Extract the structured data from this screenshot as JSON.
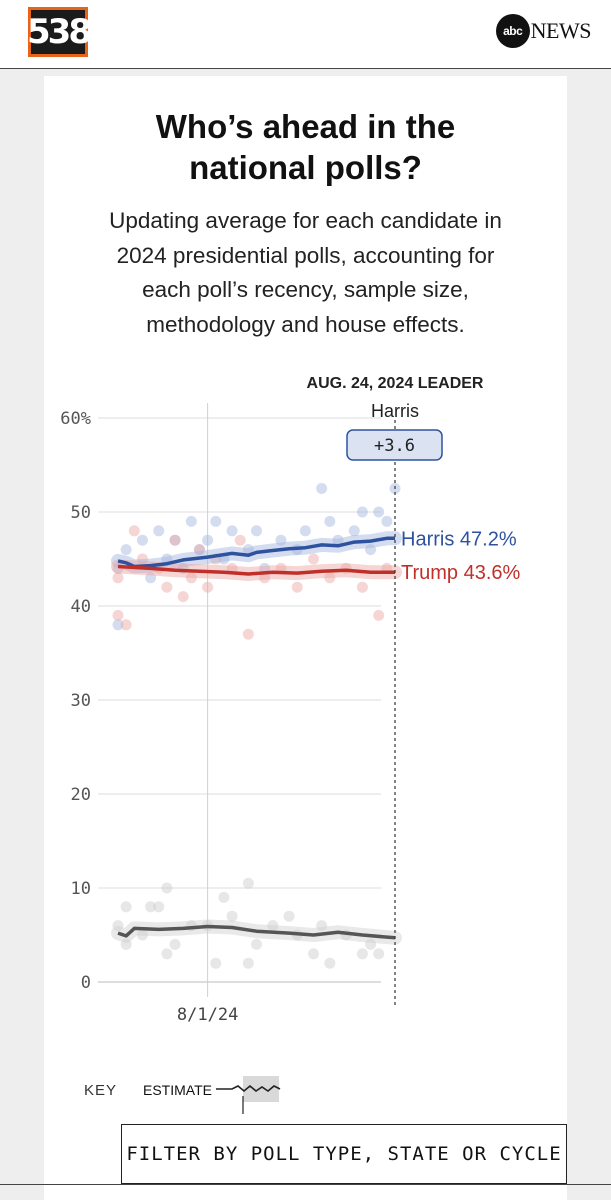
{
  "header": {
    "logo_text": "538",
    "abc_text": "abc",
    "news_text": "NEWS"
  },
  "title_line1": "Who’s ahead in the",
  "title_line2": "national polls?",
  "subtitle_lines": [
    "Updating average for each candidate in",
    "2024 presidential polls, accounting for",
    "each poll’s recency, sample size,",
    "methodology and house effects."
  ],
  "leader": {
    "heading": "AUG. 24, 2024 LEADER",
    "name": "Harris",
    "margin": "+3.6"
  },
  "key": {
    "label": "KEY",
    "estimate_label": "ESTIMATE"
  },
  "filter_label": "FILTER BY POLL TYPE, STATE OR CYCLE",
  "colors": {
    "harris": "#2f52a0",
    "trump": "#c0302b",
    "other": "#555555",
    "logo_accent": "#e8631a"
  },
  "chart_data": {
    "type": "line",
    "x_domain": [
      "2024-07-21",
      "2024-08-24"
    ],
    "y_domain": [
      0,
      60
    ],
    "y_ticks": [
      0,
      10,
      20,
      30,
      40,
      50,
      60
    ],
    "y_tick_labels": [
      "0",
      "10",
      "20",
      "30",
      "40",
      "50",
      "60%"
    ],
    "x_ticks": [
      {
        "date": "2024-08-01",
        "label": "8/1/24"
      }
    ],
    "end_labels": [
      {
        "series": "Harris",
        "text": "Harris 47.2%"
      },
      {
        "series": "Trump",
        "text": "Trump 43.6%"
      }
    ],
    "grid": true,
    "series": [
      {
        "name": "Harris",
        "color": "#2f52a0",
        "x": [
          "2024-07-21",
          "2024-07-22",
          "2024-07-23",
          "2024-07-25",
          "2024-07-27",
          "2024-07-29",
          "2024-08-01",
          "2024-08-04",
          "2024-08-06",
          "2024-08-07",
          "2024-08-09",
          "2024-08-11",
          "2024-08-13",
          "2024-08-15",
          "2024-08-17",
          "2024-08-19",
          "2024-08-21",
          "2024-08-23",
          "2024-08-24"
        ],
        "values": [
          44.8,
          44.6,
          44.2,
          44.3,
          44.5,
          44.9,
          45.2,
          45.6,
          45.4,
          45.7,
          45.9,
          46.1,
          46.2,
          46.5,
          46.4,
          46.8,
          46.9,
          47.2,
          47.2
        ]
      },
      {
        "name": "Trump",
        "color": "#c0302b",
        "x": [
          "2024-07-21",
          "2024-07-23",
          "2024-07-25",
          "2024-07-28",
          "2024-07-31",
          "2024-08-03",
          "2024-08-06",
          "2024-08-09",
          "2024-08-12",
          "2024-08-15",
          "2024-08-18",
          "2024-08-21",
          "2024-08-24"
        ],
        "values": [
          44.2,
          44.1,
          44.0,
          43.8,
          43.7,
          43.6,
          43.4,
          43.6,
          43.5,
          43.7,
          43.8,
          43.6,
          43.6
        ]
      },
      {
        "name": "Other",
        "color": "#555555",
        "x": [
          "2024-07-21",
          "2024-07-22",
          "2024-07-23",
          "2024-07-26",
          "2024-07-29",
          "2024-08-01",
          "2024-08-04",
          "2024-08-07",
          "2024-08-11",
          "2024-08-14",
          "2024-08-17",
          "2024-08-20",
          "2024-08-24"
        ],
        "values": [
          5.2,
          4.9,
          5.7,
          5.6,
          5.7,
          5.9,
          5.8,
          5.4,
          5.2,
          5.0,
          5.3,
          5.0,
          4.7
        ]
      }
    ],
    "polls": [
      {
        "s": "Harris",
        "x": "2024-07-21",
        "y": 44
      },
      {
        "s": "Harris",
        "x": "2024-07-21",
        "y": 38
      },
      {
        "s": "Harris",
        "x": "2024-07-22",
        "y": 46
      },
      {
        "s": "Harris",
        "x": "2024-07-24",
        "y": 47
      },
      {
        "s": "Harris",
        "x": "2024-07-25",
        "y": 43
      },
      {
        "s": "Harris",
        "x": "2024-07-26",
        "y": 48
      },
      {
        "s": "Harris",
        "x": "2024-07-27",
        "y": 45
      },
      {
        "s": "Harris",
        "x": "2024-07-28",
        "y": 47
      },
      {
        "s": "Harris",
        "x": "2024-07-29",
        "y": 44
      },
      {
        "s": "Harris",
        "x": "2024-07-30",
        "y": 49
      },
      {
        "s": "Harris",
        "x": "2024-07-31",
        "y": 46
      },
      {
        "s": "Harris",
        "x": "2024-08-01",
        "y": 47
      },
      {
        "s": "Harris",
        "x": "2024-08-02",
        "y": 49
      },
      {
        "s": "Harris",
        "x": "2024-08-03",
        "y": 45
      },
      {
        "s": "Harris",
        "x": "2024-08-04",
        "y": 48
      },
      {
        "s": "Harris",
        "x": "2024-08-06",
        "y": 46
      },
      {
        "s": "Harris",
        "x": "2024-08-07",
        "y": 48
      },
      {
        "s": "Harris",
        "x": "2024-08-08",
        "y": 44
      },
      {
        "s": "Harris",
        "x": "2024-08-10",
        "y": 47
      },
      {
        "s": "Harris",
        "x": "2024-08-12",
        "y": 46
      },
      {
        "s": "Harris",
        "x": "2024-08-13",
        "y": 48
      },
      {
        "s": "Harris",
        "x": "2024-08-15",
        "y": 52.5
      },
      {
        "s": "Harris",
        "x": "2024-08-16",
        "y": 49
      },
      {
        "s": "Harris",
        "x": "2024-08-17",
        "y": 47
      },
      {
        "s": "Harris",
        "x": "2024-08-19",
        "y": 48
      },
      {
        "s": "Harris",
        "x": "2024-08-20",
        "y": 50
      },
      {
        "s": "Harris",
        "x": "2024-08-21",
        "y": 46
      },
      {
        "s": "Harris",
        "x": "2024-08-22",
        "y": 50
      },
      {
        "s": "Harris",
        "x": "2024-08-23",
        "y": 49
      },
      {
        "s": "Harris",
        "x": "2024-08-24",
        "y": 52.5
      },
      {
        "s": "Trump",
        "x": "2024-07-21",
        "y": 43
      },
      {
        "s": "Trump",
        "x": "2024-07-21",
        "y": 39
      },
      {
        "s": "Trump",
        "x": "2024-07-22",
        "y": 38
      },
      {
        "s": "Trump",
        "x": "2024-07-23",
        "y": 48
      },
      {
        "s": "Trump",
        "x": "2024-07-24",
        "y": 45
      },
      {
        "s": "Trump",
        "x": "2024-07-26",
        "y": 44
      },
      {
        "s": "Trump",
        "x": "2024-07-27",
        "y": 42
      },
      {
        "s": "Trump",
        "x": "2024-07-28",
        "y": 47
      },
      {
        "s": "Trump",
        "x": "2024-07-29",
        "y": 41
      },
      {
        "s": "Trump",
        "x": "2024-07-30",
        "y": 43
      },
      {
        "s": "Trump",
        "x": "2024-07-31",
        "y": 46
      },
      {
        "s": "Trump",
        "x": "2024-08-01",
        "y": 42
      },
      {
        "s": "Trump",
        "x": "2024-08-02",
        "y": 45
      },
      {
        "s": "Trump",
        "x": "2024-08-04",
        "y": 44
      },
      {
        "s": "Trump",
        "x": "2024-08-05",
        "y": 47
      },
      {
        "s": "Trump",
        "x": "2024-08-06",
        "y": 37
      },
      {
        "s": "Trump",
        "x": "2024-08-08",
        "y": 43
      },
      {
        "s": "Trump",
        "x": "2024-08-10",
        "y": 44
      },
      {
        "s": "Trump",
        "x": "2024-08-12",
        "y": 42
      },
      {
        "s": "Trump",
        "x": "2024-08-14",
        "y": 45
      },
      {
        "s": "Trump",
        "x": "2024-08-16",
        "y": 43
      },
      {
        "s": "Trump",
        "x": "2024-08-18",
        "y": 44
      },
      {
        "s": "Trump",
        "x": "2024-08-20",
        "y": 42
      },
      {
        "s": "Trump",
        "x": "2024-08-22",
        "y": 39
      },
      {
        "s": "Trump",
        "x": "2024-08-23",
        "y": 44
      },
      {
        "s": "Other",
        "x": "2024-07-21",
        "y": 6
      },
      {
        "s": "Other",
        "x": "2024-07-22",
        "y": 4
      },
      {
        "s": "Other",
        "x": "2024-07-22",
        "y": 8
      },
      {
        "s": "Other",
        "x": "2024-07-24",
        "y": 5
      },
      {
        "s": "Other",
        "x": "2024-07-25",
        "y": 8
      },
      {
        "s": "Other",
        "x": "2024-07-26",
        "y": 8
      },
      {
        "s": "Other",
        "x": "2024-07-27",
        "y": 10
      },
      {
        "s": "Other",
        "x": "2024-07-27",
        "y": 3
      },
      {
        "s": "Other",
        "x": "2024-07-28",
        "y": 4
      },
      {
        "s": "Other",
        "x": "2024-07-30",
        "y": 6
      },
      {
        "s": "Other",
        "x": "2024-08-01",
        "y": 6
      },
      {
        "s": "Other",
        "x": "2024-08-02",
        "y": 2
      },
      {
        "s": "Other",
        "x": "2024-08-03",
        "y": 9
      },
      {
        "s": "Other",
        "x": "2024-08-04",
        "y": 7
      },
      {
        "s": "Other",
        "x": "2024-08-06",
        "y": 2
      },
      {
        "s": "Other",
        "x": "2024-08-06",
        "y": 10.5
      },
      {
        "s": "Other",
        "x": "2024-08-07",
        "y": 4
      },
      {
        "s": "Other",
        "x": "2024-08-09",
        "y": 6
      },
      {
        "s": "Other",
        "x": "2024-08-11",
        "y": 7
      },
      {
        "s": "Other",
        "x": "2024-08-12",
        "y": 5
      },
      {
        "s": "Other",
        "x": "2024-08-14",
        "y": 3
      },
      {
        "s": "Other",
        "x": "2024-08-15",
        "y": 6
      },
      {
        "s": "Other",
        "x": "2024-08-16",
        "y": 2
      },
      {
        "s": "Other",
        "x": "2024-08-18",
        "y": 5
      },
      {
        "s": "Other",
        "x": "2024-08-20",
        "y": 3
      },
      {
        "s": "Other",
        "x": "2024-08-21",
        "y": 4
      },
      {
        "s": "Other",
        "x": "2024-08-22",
        "y": 3
      }
    ]
  }
}
